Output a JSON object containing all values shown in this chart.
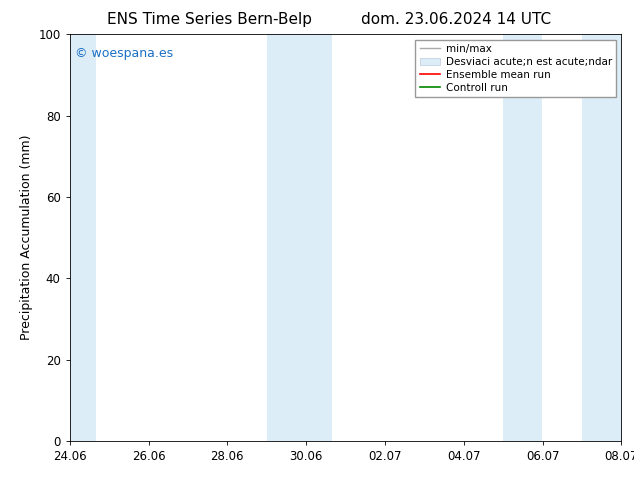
{
  "title_left": "ENS Time Series Bern-Belp",
  "title_right": "dom. 23.06.2024 14 UTC",
  "ylabel": "Precipitation Accumulation (mm)",
  "ylim": [
    0,
    100
  ],
  "yticks": [
    0,
    20,
    40,
    60,
    80,
    100
  ],
  "xtick_labels": [
    "24.06",
    "26.06",
    "28.06",
    "30.06",
    "02.07",
    "04.07",
    "06.07",
    "08.07"
  ],
  "watermark": "© woespana.es",
  "watermark_color": "#1a6fc4",
  "bg_color": "#ffffff",
  "plot_bg_color": "#ffffff",
  "shaded_bands": [
    {
      "xmin": 0.0,
      "xmax": 0.048,
      "color": "#ddedf8"
    },
    {
      "xmin": 0.357,
      "xmax": 0.476,
      "color": "#ddedf8"
    },
    {
      "xmin": 0.786,
      "xmax": 0.857,
      "color": "#ddedf8"
    },
    {
      "xmin": 0.928,
      "xmax": 1.0,
      "color": "#ddedf8"
    }
  ],
  "legend_labels": [
    "min/max",
    "Desviaci acute;n est acute;ndar",
    "Ensemble mean run",
    "Controll run"
  ],
  "legend_colors": [
    "#aaaaaa",
    "#ddedf8",
    "#ff0000",
    "#008800"
  ],
  "title_fontsize": 11,
  "axis_fontsize": 9,
  "tick_fontsize": 8.5,
  "legend_fontsize": 7.5
}
